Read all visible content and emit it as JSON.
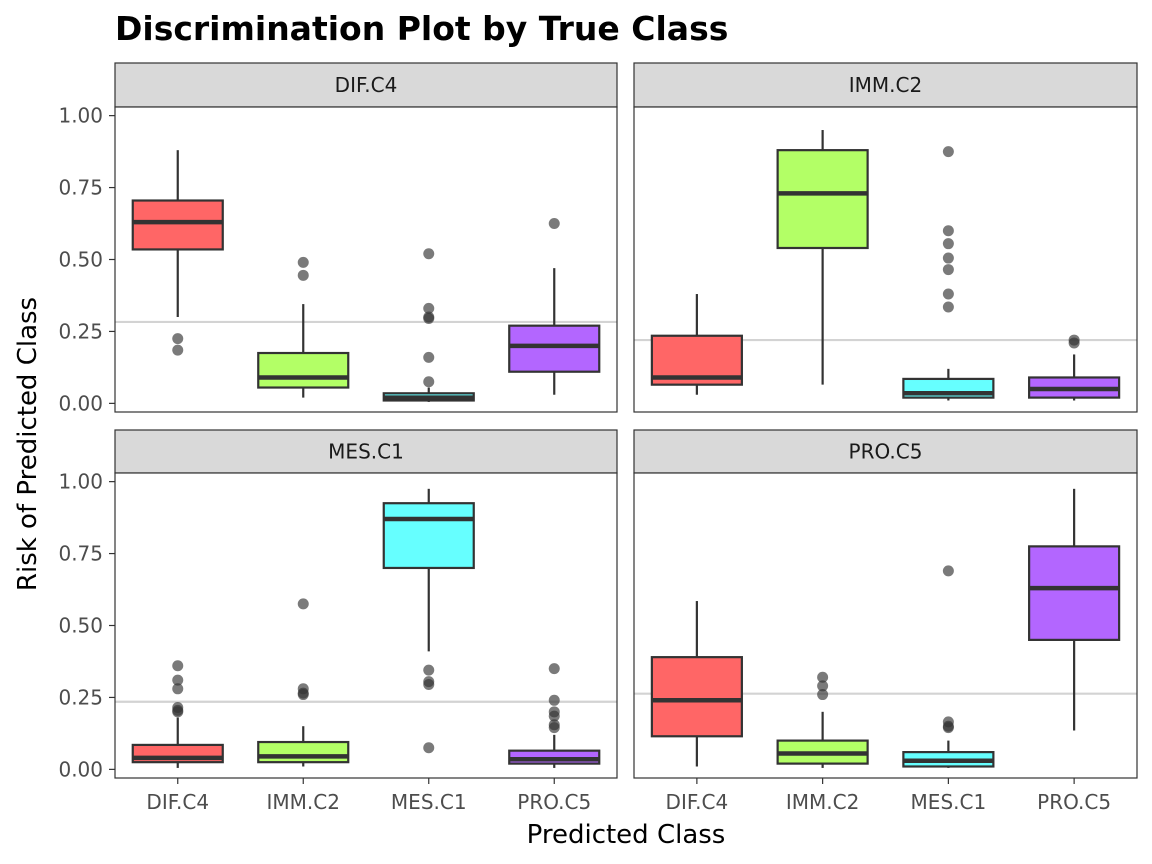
{
  "chart_data": {
    "type": "box",
    "title": "Discrimination Plot by True Class",
    "xlabel": "Predicted Class",
    "ylabel": "Risk of Predicted Class",
    "ylim": [
      -0.03,
      1.03
    ],
    "yticks": [
      "0.00",
      "0.25",
      "0.50",
      "0.75",
      "1.00"
    ],
    "categories": [
      "DIF.C4",
      "IMM.C2",
      "MES.C1",
      "PRO.C5"
    ],
    "colors": {
      "DIF.C4": "#ff6666",
      "IMM.C2": "#b3ff66",
      "MES.C1": "#66ffff",
      "PRO.C5": "#b366ff"
    },
    "panels": [
      {
        "title": "DIF.C4",
        "reference_line": 0.283,
        "boxes": [
          {
            "category": "DIF.C4",
            "min": 0.3,
            "q1": 0.535,
            "median": 0.63,
            "q3": 0.705,
            "max": 0.88,
            "outliers": [
              0.225,
              0.185
            ]
          },
          {
            "category": "IMM.C2",
            "min": 0.02,
            "q1": 0.055,
            "median": 0.09,
            "q3": 0.175,
            "max": 0.345,
            "outliers": [
              0.49,
              0.445
            ]
          },
          {
            "category": "MES.C1",
            "min": 0.005,
            "q1": 0.01,
            "median": 0.02,
            "q3": 0.035,
            "max": 0.055,
            "outliers": [
              0.52,
              0.33,
              0.3,
              0.295,
              0.16,
              0.075
            ]
          },
          {
            "category": "PRO.C5",
            "min": 0.03,
            "q1": 0.11,
            "median": 0.2,
            "q3": 0.27,
            "max": 0.47,
            "outliers": [
              0.625
            ]
          }
        ]
      },
      {
        "title": "IMM.C2",
        "reference_line": 0.22,
        "boxes": [
          {
            "category": "DIF.C4",
            "min": 0.03,
            "q1": 0.065,
            "median": 0.09,
            "q3": 0.235,
            "max": 0.38,
            "outliers": []
          },
          {
            "category": "IMM.C2",
            "min": 0.065,
            "q1": 0.54,
            "median": 0.73,
            "q3": 0.88,
            "max": 0.95,
            "outliers": []
          },
          {
            "category": "MES.C1",
            "min": 0.01,
            "q1": 0.02,
            "median": 0.035,
            "q3": 0.085,
            "max": 0.12,
            "outliers": [
              0.875,
              0.6,
              0.555,
              0.505,
              0.465,
              0.38,
              0.335
            ]
          },
          {
            "category": "PRO.C5",
            "min": 0.01,
            "q1": 0.02,
            "median": 0.05,
            "q3": 0.09,
            "max": 0.17,
            "outliers": [
              0.22,
              0.21
            ]
          }
        ]
      },
      {
        "title": "MES.C1",
        "reference_line": 0.235,
        "boxes": [
          {
            "category": "DIF.C4",
            "min": 0.005,
            "q1": 0.025,
            "median": 0.04,
            "q3": 0.085,
            "max": 0.18,
            "outliers": [
              0.36,
              0.31,
              0.28,
              0.215,
              0.205,
              0.2
            ]
          },
          {
            "category": "IMM.C2",
            "min": 0.01,
            "q1": 0.025,
            "median": 0.045,
            "q3": 0.095,
            "max": 0.15,
            "outliers": [
              0.575,
              0.28,
              0.265,
              0.26
            ]
          },
          {
            "category": "MES.C1",
            "min": 0.41,
            "q1": 0.7,
            "median": 0.87,
            "q3": 0.925,
            "max": 0.975,
            "outliers": [
              0.345,
              0.305,
              0.295,
              0.075
            ]
          },
          {
            "category": "PRO.C5",
            "min": 0.005,
            "q1": 0.02,
            "median": 0.035,
            "q3": 0.065,
            "max": 0.12,
            "outliers": [
              0.35,
              0.24,
              0.2,
              0.185,
              0.155,
              0.145
            ]
          }
        ]
      },
      {
        "title": "PRO.C5",
        "reference_line": 0.263,
        "boxes": [
          {
            "category": "DIF.C4",
            "min": 0.01,
            "q1": 0.115,
            "median": 0.24,
            "q3": 0.39,
            "max": 0.585,
            "outliers": []
          },
          {
            "category": "IMM.C2",
            "min": 0.005,
            "q1": 0.02,
            "median": 0.055,
            "q3": 0.1,
            "max": 0.2,
            "outliers": [
              0.32,
              0.29,
              0.26
            ]
          },
          {
            "category": "MES.C1",
            "min": 0.005,
            "q1": 0.01,
            "median": 0.03,
            "q3": 0.06,
            "max": 0.1,
            "outliers": [
              0.69,
              0.165,
              0.15,
              0.145
            ]
          },
          {
            "category": "PRO.C5",
            "min": 0.135,
            "q1": 0.45,
            "median": 0.63,
            "q3": 0.775,
            "max": 0.975,
            "outliers": []
          }
        ]
      }
    ]
  }
}
